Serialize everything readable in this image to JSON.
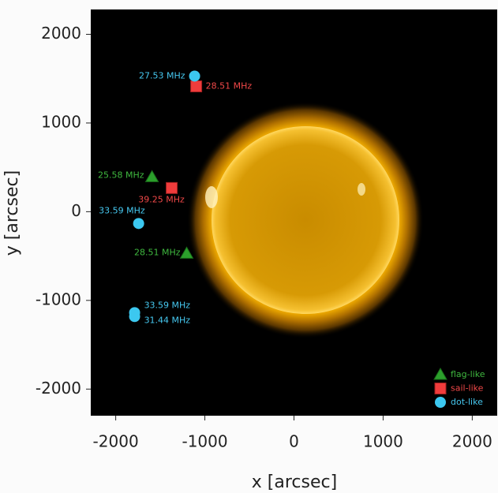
{
  "chart_data": {
    "type": "scatter",
    "xlabel": "x [arcsec]",
    "ylabel": "y [arcsec]",
    "xlim": [
      -2280,
      2280
    ],
    "ylim": [
      -2300,
      2280
    ],
    "xticks": [
      -2000,
      -1000,
      0,
      1000,
      2000
    ],
    "yticks": [
      -2000,
      -1000,
      0,
      1000,
      2000
    ],
    "legend": "lower right",
    "series": [
      {
        "name": "flag-like",
        "color": "#2ca02c",
        "label_color": "#3fb83f",
        "marker": "triangle",
        "x": [
          -1593,
          -1204
        ],
        "y": [
          391,
          -471
        ],
        "labels": [
          "25.58 MHz",
          "28.51 MHz"
        ]
      },
      {
        "name": "sail-like",
        "color": "#f03c3c",
        "label_color": "#f04848",
        "marker": "square",
        "x": [
          -1097,
          -1372
        ],
        "y": [
          1413,
          267
        ],
        "labels": [
          "28.51 MHz",
          "39.25 MHz"
        ]
      },
      {
        "name": "dot-like",
        "color": "#3cc8f0",
        "label_color": "#46c8f0",
        "marker": "circle",
        "x": [
          -1115,
          -1743,
          -1788,
          -1788
        ],
        "y": [
          1529,
          -133,
          -1138,
          -1182
        ],
        "labels": [
          "27.53 MHz",
          "33.59 MHz",
          "33.59 MHz",
          "31.44 MHz"
        ]
      }
    ]
  }
}
